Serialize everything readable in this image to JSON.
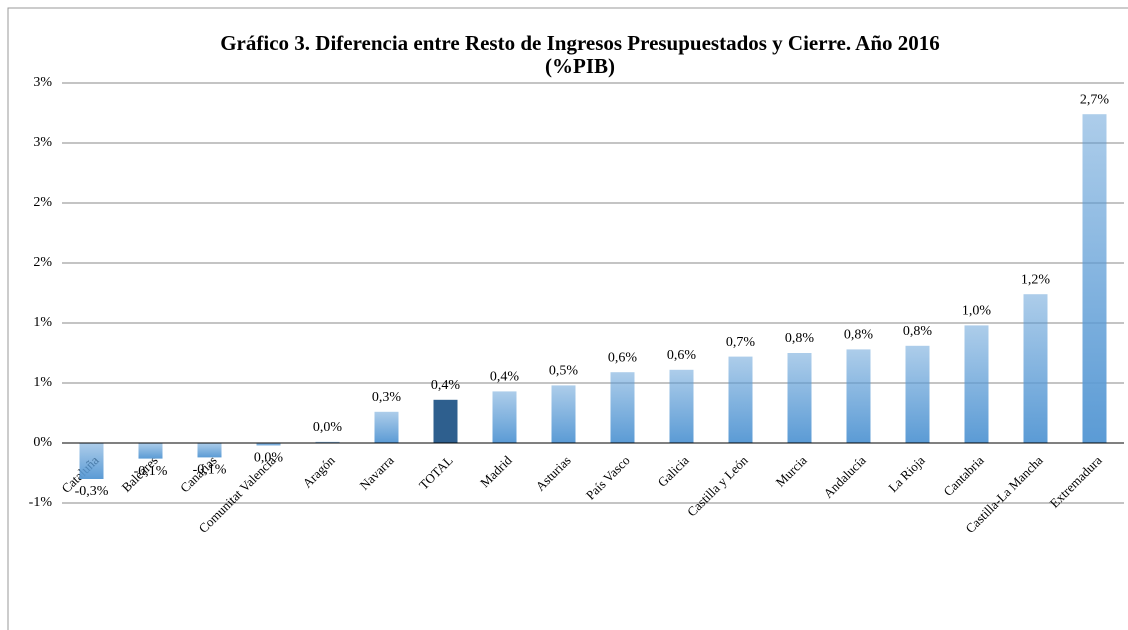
{
  "chart_data": {
    "type": "bar",
    "title": "Gráfico 3. Diferencia entre Resto de Ingresos Presupuestados y Cierre. Año 2016",
    "subtitle": "(%PIB)",
    "categories": [
      "Cataluña",
      "Baleares",
      "Canarias",
      "Comunitat Valencia",
      "Aragón",
      "Navarra",
      "TOTAL",
      "Madrid",
      "Asturias",
      "País Vasco",
      "Galicia",
      "Castilla y León",
      "Murcia",
      "Andalucía",
      "La Rioja",
      "Cantabria",
      "Castilla-La Mancha",
      "Extremadura"
    ],
    "values": [
      -0.3,
      -0.13,
      -0.12,
      -0.02,
      0.01,
      0.26,
      0.36,
      0.43,
      0.48,
      0.59,
      0.61,
      0.72,
      0.75,
      0.78,
      0.81,
      0.98,
      1.24,
      2.74
    ],
    "value_labels": [
      "-0,3%",
      "-0,1%",
      "-0,1%",
      "0,0%",
      "0,0%",
      "0,3%",
      "0,4%",
      "0,4%",
      "0,5%",
      "0,6%",
      "0,6%",
      "0,7%",
      "0,8%",
      "0,8%",
      "0,8%",
      "1,0%",
      "1,2%",
      "2,7%"
    ],
    "colors": [
      "#5b9bd5",
      "#5b9bd5",
      "#5b9bd5",
      "#5b9bd5",
      "#5b9bd5",
      "#5b9bd5",
      "#2e5f8e",
      "#5b9bd5",
      "#5b9bd5",
      "#5b9bd5",
      "#5b9bd5",
      "#5b9bd5",
      "#5b9bd5",
      "#5b9bd5",
      "#5b9bd5",
      "#5b9bd5",
      "#5b9bd5",
      "#5b9bd5"
    ],
    "ylim": [
      -0.5,
      3
    ],
    "yticks": [
      {
        "value": -0.5,
        "label": "-1%"
      },
      {
        "value": 0,
        "label": "0%"
      },
      {
        "value": 0.5,
        "label": "1%"
      },
      {
        "value": 1,
        "label": "1%"
      },
      {
        "value": 1.5,
        "label": "2%"
      },
      {
        "value": 2,
        "label": "2%"
      },
      {
        "value": 2.5,
        "label": "3%"
      },
      {
        "value": 3,
        "label": "3%"
      }
    ],
    "grid": true
  }
}
